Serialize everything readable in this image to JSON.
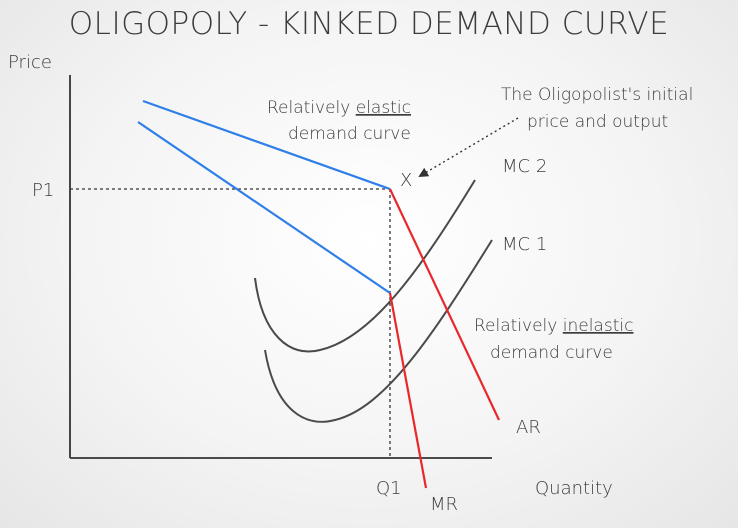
{
  "title": "OLIGOPOLY - KINKED DEMAND CURVE",
  "axes": {
    "y_label": "Price",
    "x_label": "Quantity"
  },
  "ticks": {
    "price": "P1",
    "quantity": "Q1"
  },
  "labels": {
    "elastic_line1_prefix": "Relatively ",
    "elastic_line1_word": "elastic",
    "elastic_line2": "demand curve",
    "inelastic_line1_prefix": "Relatively ",
    "inelastic_line1_word": "inelastic",
    "inelastic_line2": "demand curve",
    "initial_line1": "The Oligopolist's initial",
    "initial_line2": "price and output",
    "kink_marker": "X",
    "mc2": "MC 2",
    "mc1": "MC 1",
    "ar": "AR",
    "mr": "MR"
  },
  "colors": {
    "axis": "#333333",
    "elastic": "#2f7fe8",
    "inelastic": "#e8282b",
    "cost_curve": "#4a4a4a",
    "guide": "#333333",
    "text": "#3c3c3c"
  }
}
